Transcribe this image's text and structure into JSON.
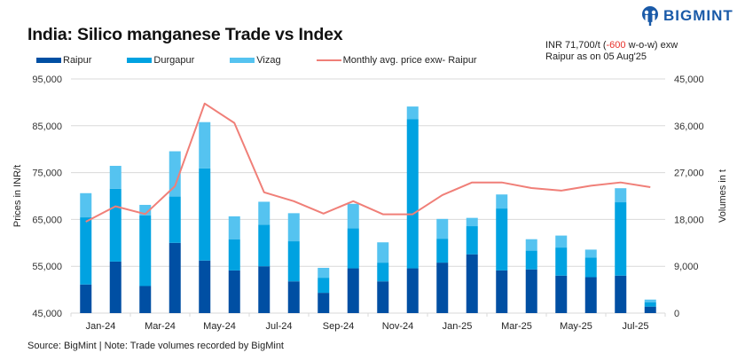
{
  "header": {
    "title": "India: Silico manganese Trade vs Index",
    "note_line1_prefix": "INR 71,700/t (",
    "note_line1_change": "-600",
    "note_line1_suffix": " w-o-w) exw",
    "note_line2": "Raipur as on 05 Aug'25",
    "logo_text": "BIGMINT",
    "logo_icon": "bigmint-logo-icon"
  },
  "footer": {
    "source": "Source: BigMint | Note: Trade volumes recorded by BigMint"
  },
  "colors": {
    "raipur": "#004fa3",
    "durgapur": "#00a2e1",
    "vizag": "#55c3f0",
    "price_line": "#f07f78",
    "grid": "#d9d9d9",
    "negative_change": "#e8302a",
    "logo": "#1a5aa8"
  },
  "chart_data": {
    "type": "bar",
    "subtype": "stacked-bar-with-line",
    "title": "India: Silico manganese Trade vs Index",
    "categories": [
      "Jan-24",
      "Feb-24",
      "Mar-24",
      "Apr-24",
      "May-24",
      "Jun-24",
      "Jul-24",
      "Aug-24",
      "Sep-24",
      "Oct-24",
      "Nov-24",
      "Dec-24",
      "Jan-25",
      "Feb-25",
      "Mar-25",
      "Apr-25",
      "May-25",
      "Jun-25",
      "Jul-25",
      "Aug-25"
    ],
    "x_tick_labels": [
      "Jan-24",
      "Mar-24",
      "May-24",
      "Jul-24",
      "Sep-24",
      "Nov-24",
      "Jan-25",
      "Mar-25",
      "May-25",
      "Jul-25"
    ],
    "series": [
      {
        "name": "Raipur",
        "axis": "right",
        "type": "bar",
        "values": [
          5500,
          9900,
          5200,
          13500,
          10100,
          8200,
          9000,
          6100,
          3900,
          8600,
          6100,
          8600,
          9700,
          11300,
          8200,
          8400,
          7200,
          6900,
          7200,
          1250
        ]
      },
      {
        "name": "Durgapur",
        "axis": "right",
        "type": "bar",
        "values": [
          12900,
          14000,
          13600,
          8900,
          17700,
          6000,
          8000,
          7700,
          2900,
          7700,
          3600,
          28700,
          4600,
          5400,
          11900,
          3600,
          5400,
          3800,
          14100,
          850
        ]
      },
      {
        "name": "Vizag",
        "axis": "right",
        "type": "bar",
        "values": [
          4650,
          4400,
          2000,
          8700,
          8900,
          4400,
          4400,
          5400,
          1900,
          4700,
          3900,
          2400,
          3800,
          1600,
          2700,
          2200,
          2300,
          1500,
          2700,
          500
        ]
      },
      {
        "name": "Monthly avg. price exw- Raipur",
        "axis": "left",
        "type": "line",
        "values": [
          64500,
          67800,
          66150,
          72100,
          89750,
          85600,
          70800,
          68900,
          66250,
          68900,
          66100,
          66100,
          70200,
          72900,
          72900,
          71700,
          71150,
          72200,
          72900,
          71900
        ]
      }
    ],
    "ylabel_left": "Prices in INR/t",
    "ylabel_right": "Volumes in t",
    "ylim_left": [
      45000,
      95000
    ],
    "ylim_right": [
      0,
      45000
    ],
    "yticks_left": [
      "45,000",
      "55,000",
      "65,000",
      "75,000",
      "85,000",
      "95,000"
    ],
    "yticks_right": [
      "0",
      "9,000",
      "18,000",
      "27,000",
      "36,000",
      "45,000"
    ],
    "grid": true,
    "legend_position": "top-left"
  }
}
